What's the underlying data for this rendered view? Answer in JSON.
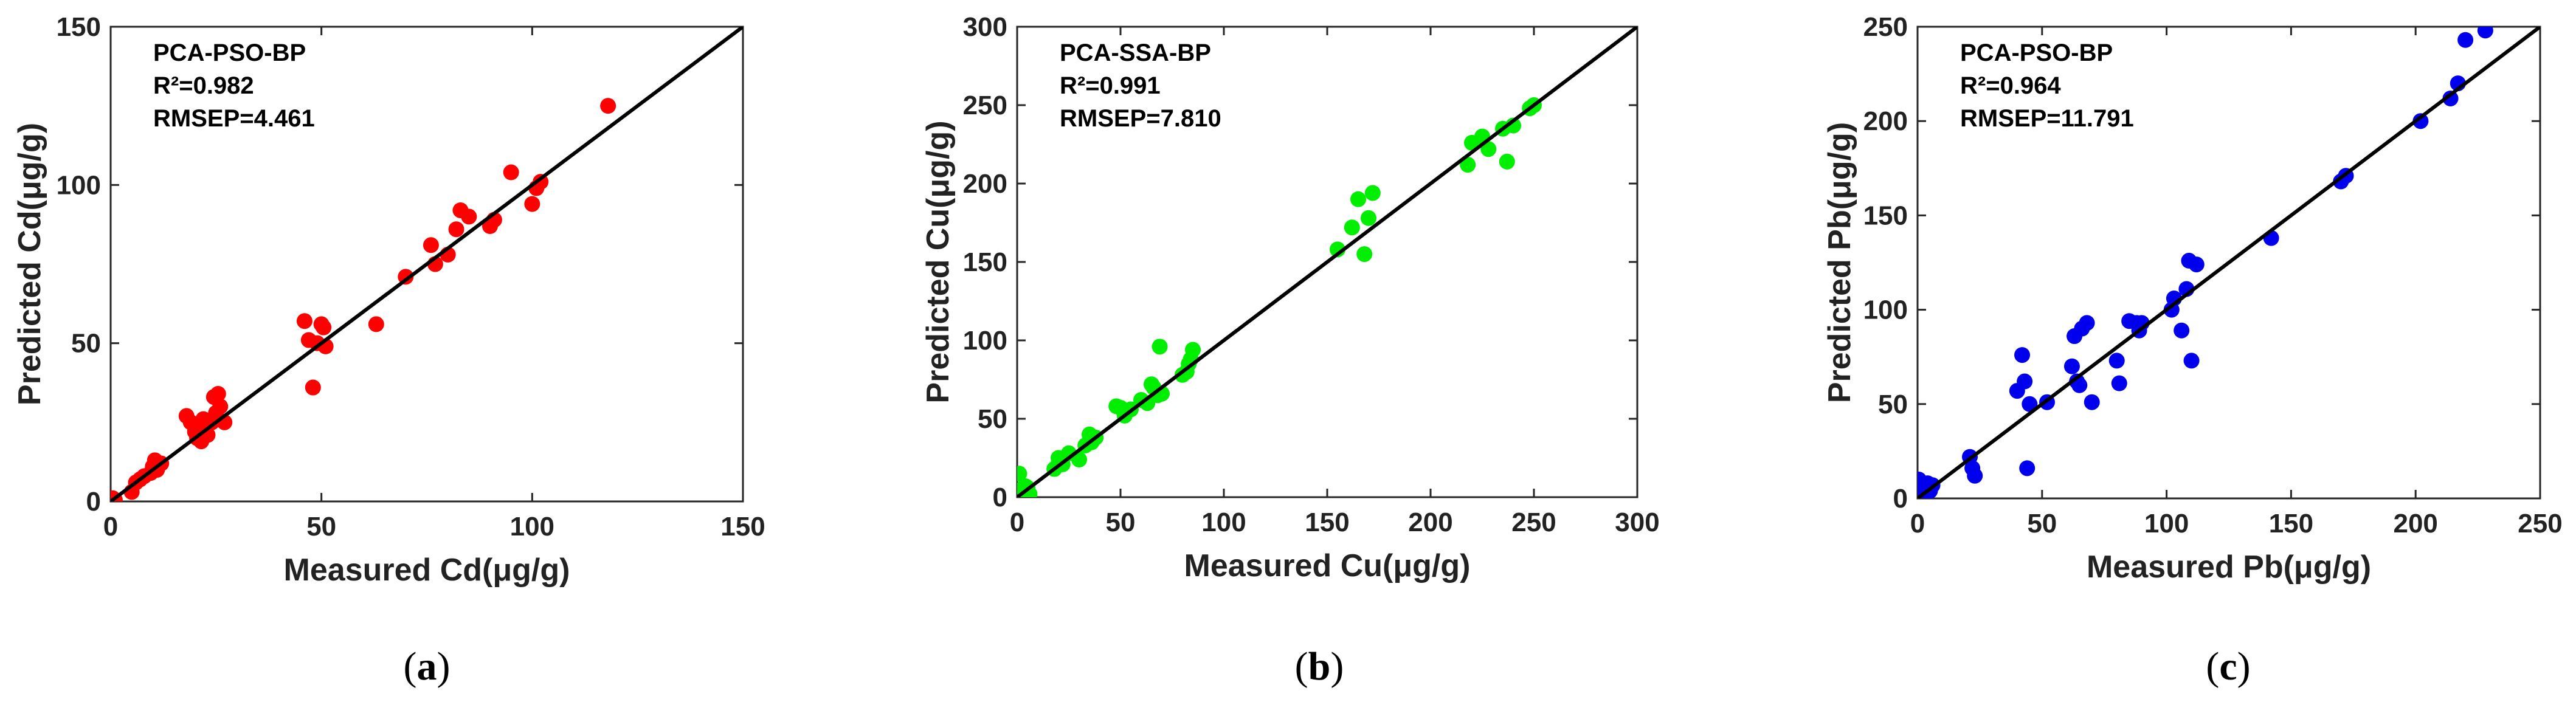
{
  "chart_data": [
    {
      "type": "scatter",
      "panel": "a",
      "caption": {
        "open": "(",
        "letter": "a",
        "close": ")"
      },
      "model": "PCA-PSO-BP",
      "r2_text": "R²=0.982",
      "rmsep_text": "RMSEP=4.461",
      "xlabel": "Measured Cd(μg/g)",
      "ylabel": "Predicted Cd(μg/g)",
      "xlim": [
        0,
        150
      ],
      "ylim": [
        0,
        150
      ],
      "xticks": [
        0,
        50,
        100,
        150
      ],
      "yticks": [
        0,
        50,
        100,
        150
      ],
      "color": "#ff0000",
      "fit_line": {
        "x": [
          0,
          150
        ],
        "y": [
          0,
          150
        ]
      },
      "x": [
        0.5,
        1,
        5,
        6,
        7,
        8,
        9.5,
        10,
        10.5,
        11,
        12,
        18,
        19,
        20,
        20.5,
        21,
        21.5,
        22,
        23,
        24,
        24.5,
        25,
        25.5,
        26,
        27,
        46,
        47,
        48,
        49,
        50,
        50.5,
        51,
        63,
        70,
        76,
        77,
        80,
        82,
        83,
        85,
        90,
        91,
        95,
        100,
        101,
        102,
        118
      ],
      "y": [
        1,
        0.5,
        3,
        6,
        7,
        8,
        9,
        11,
        13,
        10,
        12,
        27,
        25,
        22,
        20,
        24,
        19,
        26,
        21,
        25,
        33,
        28,
        34,
        30,
        25,
        57,
        51,
        36,
        50,
        56,
        55,
        49,
        56,
        71,
        81,
        75,
        78,
        86,
        92,
        90,
        87,
        89,
        104,
        94,
        99,
        101,
        125
      ]
    },
    {
      "type": "scatter",
      "panel": "b",
      "caption": {
        "open": "(",
        "letter": "b",
        "close": ")"
      },
      "model": "PCA-SSA-BP",
      "r2_text": "R²=0.991",
      "rmsep_text": "RMSEP=7.810",
      "xlabel": "Measured Cu(μg/g)",
      "ylabel": "Predicted Cu(μg/g)",
      "xlim": [
        0,
        300
      ],
      "ylim": [
        0,
        300
      ],
      "xticks": [
        0,
        50,
        100,
        150,
        200,
        250,
        300
      ],
      "yticks": [
        0,
        50,
        100,
        150,
        200,
        250,
        300
      ],
      "color": "#00ee00",
      "fit_line": {
        "x": [
          0,
          300
        ],
        "y": [
          0,
          300
        ]
      },
      "x": [
        1,
        2,
        3,
        4,
        5,
        6,
        18,
        20,
        22,
        25,
        30,
        33,
        35,
        36,
        38,
        48,
        50,
        52,
        55,
        60,
        63,
        65,
        66,
        68,
        69,
        70,
        80,
        82,
        83,
        84,
        85,
        155,
        162,
        165,
        168,
        170,
        172,
        218,
        220,
        225,
        228,
        235,
        237,
        240,
        248,
        250
      ],
      "y": [
        15,
        5,
        3,
        7,
        6,
        2,
        18,
        25,
        21,
        28,
        24,
        33,
        40,
        35,
        38,
        58,
        57,
        52,
        56,
        62,
        60,
        72,
        70,
        65,
        96,
        66,
        78,
        80,
        85,
        88,
        94,
        158,
        172,
        190,
        155,
        178,
        194,
        212,
        226,
        230,
        222,
        235,
        214,
        237,
        248,
        250
      ]
    },
    {
      "type": "scatter",
      "panel": "c",
      "caption": {
        "open": "(",
        "letter": "c",
        "close": ")"
      },
      "model": "PCA-PSO-BP",
      "r2_text": "R²=0.964",
      "rmsep_text": "RMSEP=11.791",
      "xlabel": "Measured Pb(μg/g)",
      "ylabel": "Predicted Pb(μg/g)",
      "xlim": [
        0,
        250
      ],
      "ylim": [
        0,
        250
      ],
      "xticks": [
        0,
        50,
        100,
        150,
        200,
        250
      ],
      "yticks": [
        0,
        50,
        100,
        150,
        200,
        250
      ],
      "color": "#0000ee",
      "fit_line": {
        "x": [
          0,
          250
        ],
        "y": [
          0,
          250
        ]
      },
      "x": [
        0.5,
        1,
        2,
        3,
        4,
        5,
        6,
        21,
        22,
        23,
        40,
        42,
        43,
        44,
        45,
        52,
        62,
        63,
        64,
        65,
        66,
        68,
        70,
        80,
        81,
        85,
        88,
        89,
        90,
        102,
        103,
        106,
        108,
        109,
        110,
        112,
        142,
        170,
        172,
        202,
        214,
        217,
        220,
        228
      ],
      "y": [
        10,
        2,
        5,
        3,
        8,
        4,
        7,
        22,
        16,
        12,
        57,
        76,
        62,
        16,
        50,
        51,
        70,
        86,
        62,
        60,
        90,
        93,
        51,
        73,
        61,
        94,
        93,
        89,
        93,
        100,
        106,
        89,
        111,
        126,
        73,
        124,
        138,
        168,
        171,
        200,
        212,
        220,
        243,
        248
      ]
    }
  ]
}
